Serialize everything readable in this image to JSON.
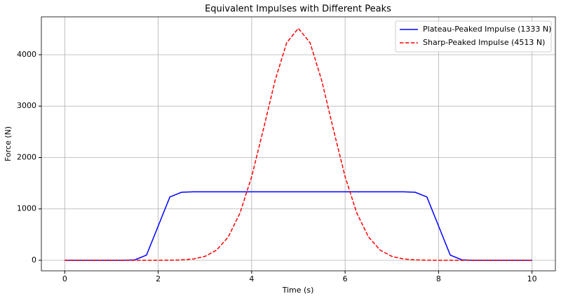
{
  "chart_data": {
    "type": "line",
    "title": "Equivalent Impulses with Different Peaks",
    "x_label": "Time (s)",
    "y_label": "Force (N)",
    "x": [
      0,
      0.25,
      0.5,
      0.75,
      1,
      1.25,
      1.5,
      1.75,
      2,
      2.25,
      2.5,
      2.75,
      3,
      3.25,
      3.5,
      3.75,
      4,
      4.25,
      4.5,
      4.75,
      5,
      5.25,
      5.5,
      5.75,
      6,
      6.25,
      6.5,
      6.75,
      7,
      7.25,
      7.5,
      7.75,
      8,
      8.25,
      8.5,
      8.75,
      9,
      9.25,
      9.5,
      9.75,
      10
    ],
    "series": [
      {
        "name": "Plateau-Peaked Impulse (1333 N)",
        "color": "#0000ff",
        "dash": "solid",
        "values": [
          0,
          0,
          0,
          0,
          0,
          0,
          9,
          101,
          667,
          1232,
          1324,
          1332,
          1333,
          1333,
          1333,
          1333,
          1333,
          1333,
          1333,
          1333,
          1333,
          1333,
          1333,
          1333,
          1333,
          1333,
          1333,
          1333,
          1333,
          1332,
          1324,
          1232,
          667,
          101,
          9,
          0,
          0,
          0,
          0,
          0,
          0
        ]
      },
      {
        "name": "Sharp-Peaked Impulse (4513 N)",
        "color": "#ff0000",
        "dash": "dashed",
        "values": [
          0,
          0,
          0,
          0,
          0,
          0,
          0,
          0,
          0,
          2,
          8,
          26,
          76,
          198,
          455,
          919,
          1626,
          2544,
          3496,
          4234,
          4513,
          4234,
          3496,
          2544,
          1626,
          919,
          455,
          198,
          76,
          26,
          8,
          2,
          0,
          0,
          0,
          0,
          0,
          0,
          0,
          0,
          0
        ]
      }
    ],
    "xlim": [
      -0.5,
      10.5
    ],
    "ylim": [
      -205,
      4737
    ],
    "xticks": [
      0,
      2,
      4,
      6,
      8,
      10
    ],
    "yticks": [
      0,
      1000,
      2000,
      3000,
      4000
    ],
    "grid": true,
    "legend": "upper-right"
  }
}
